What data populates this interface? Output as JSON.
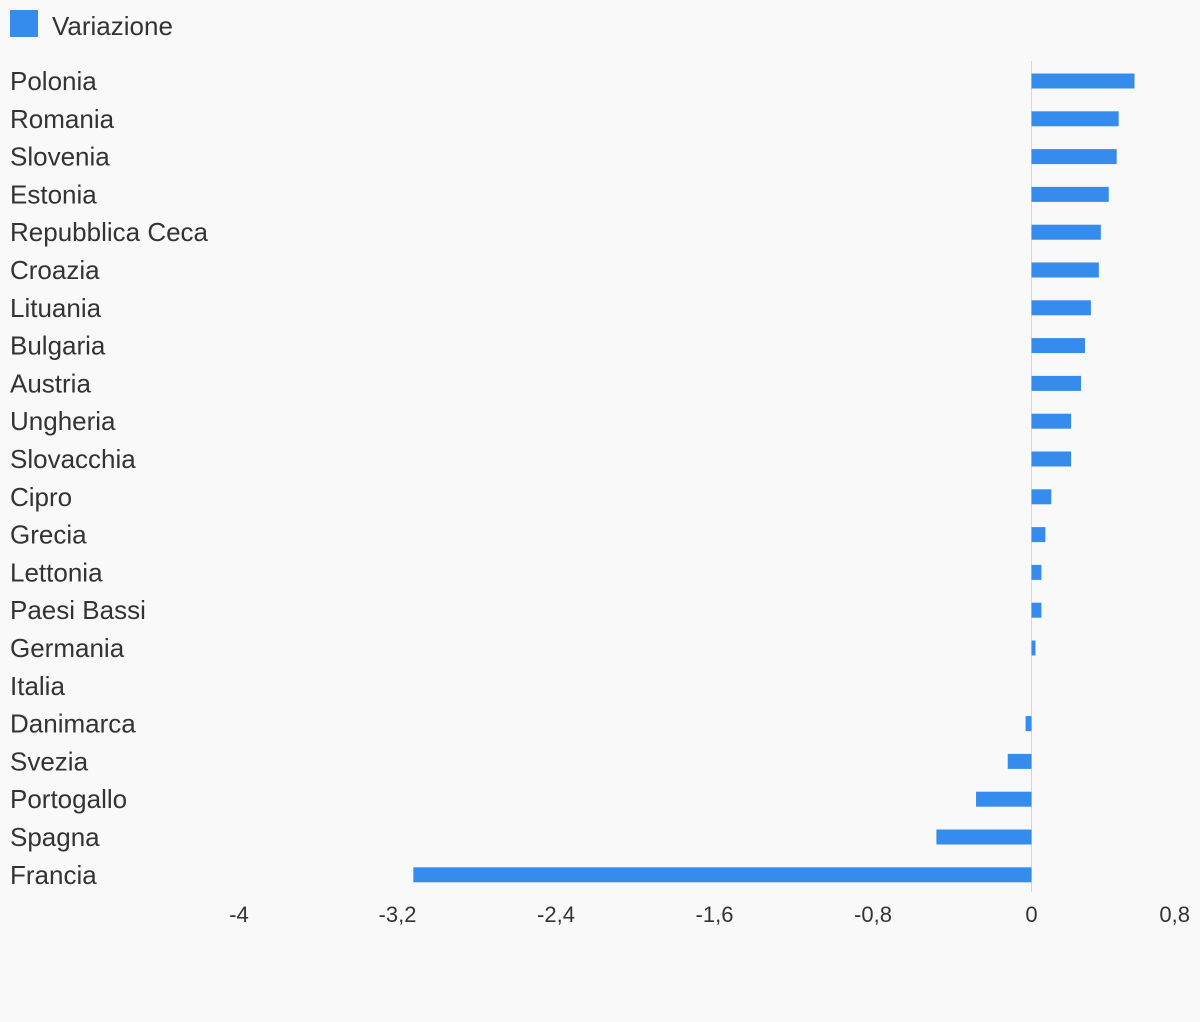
{
  "chart_data": {
    "type": "bar",
    "orientation": "horizontal",
    "legend_position": "top-left",
    "grid": false,
    "series": [
      {
        "name": "Variazione",
        "color": "#368ced",
        "values": [
          0.52,
          0.44,
          0.43,
          0.39,
          0.35,
          0.34,
          0.3,
          0.27,
          0.25,
          0.2,
          0.2,
          0.1,
          0.07,
          0.05,
          0.05,
          0.02,
          0.0,
          -0.03,
          -0.12,
          -0.28,
          -0.48,
          -3.12
        ]
      }
    ],
    "categories": [
      "Polonia",
      "Romania",
      "Slovenia",
      "Estonia",
      "Repubblica Ceca",
      "Croazia",
      "Lituania",
      "Bulgaria",
      "Austria",
      "Ungheria",
      "Slovacchia",
      "Cipro",
      "Grecia",
      "Lettonia",
      "Paesi Bassi",
      "Germania",
      "Italia",
      "Danimarca",
      "Svezia",
      "Portogallo",
      "Spagna",
      "Francia"
    ],
    "xlim": [
      -4,
      0.8
    ],
    "xticks": [
      "-4",
      "-3,2",
      "-2,4",
      "-1,6",
      "-0,8",
      "0",
      "0,8"
    ],
    "xtick_values": [
      -4,
      -3.2,
      -2.4,
      -1.6,
      -0.8,
      0,
      0.8
    ],
    "title": "",
    "xlabel": "",
    "ylabel": ""
  }
}
